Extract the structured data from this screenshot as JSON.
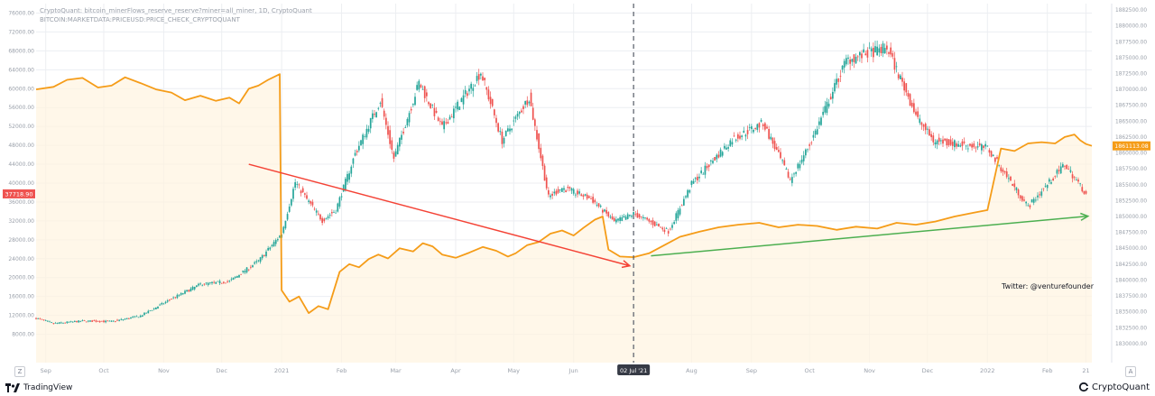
{
  "legend": {
    "line1": "CryptoQuant: bitcoin_minerFlows_reserve_reserve?miner=all_miner, 1D, CryptoQuant",
    "line2": "BITCOIN:MARKETDATA:PRICEUSD:PRICE_CHECK_CRYPTOQUANT"
  },
  "annotation": "Twitter: @venturefounder",
  "crosshair": {
    "label": "02 Jul '21"
  },
  "branding": {
    "tradingview": "TradingView",
    "cryptoquant": "CryptoQuant"
  },
  "corner_buttons": {
    "left": "Z",
    "right": "A"
  },
  "colors": {
    "price_line": "#f59c18",
    "candle_up": "#26a69a",
    "candle_down": "#ef5350",
    "red_trend": "#f44336",
    "green_trend": "#4caf50",
    "fill": "#fff3e0",
    "grid": "#eceef2",
    "axis_text": "#9aa0aa",
    "left_badge": "#ef5350",
    "right_badge": "#f59c18"
  },
  "chart_data": {
    "type": "line",
    "title": "",
    "xlabel": "",
    "ylabel": "",
    "grid": true,
    "x_tick_labels": [
      "Sep",
      "Oct",
      "Nov",
      "Dec",
      "2021",
      "Feb",
      "Mar",
      "Apr",
      "May",
      "Jun",
      "Aug",
      "Sep",
      "Oct",
      "Nov",
      "Dec",
      "2022",
      "Feb",
      "21"
    ],
    "x_tick_dates": [
      "2020-09-01",
      "2020-10-01",
      "2020-11-01",
      "2020-12-01",
      "2021-01-01",
      "2021-02-01",
      "2021-03-01",
      "2021-04-01",
      "2021-05-01",
      "2021-06-01",
      "2021-08-01",
      "2021-09-01",
      "2021-10-01",
      "2021-11-01",
      "2021-12-01",
      "2022-01-01",
      "2022-02-01",
      "2022-02-21"
    ],
    "x_range": [
      "2020-08-27",
      "2022-02-24"
    ],
    "left_axis": {
      "ticks": [
        8000,
        12000,
        16000,
        20000,
        24000,
        28000,
        32000,
        36000,
        40000,
        44000,
        48000,
        52000,
        56000,
        60000,
        64000,
        68000,
        72000,
        76000
      ],
      "range": [
        2000,
        78000
      ],
      "current_label": "37718.90"
    },
    "right_axis": {
      "ticks": [
        1830000,
        1832500,
        1835000,
        1837500,
        1840000,
        1842500,
        1845000,
        1847500,
        1850000,
        1852500,
        1855000,
        1857500,
        1860000,
        1862500,
        1865000,
        1867500,
        1870000,
        1872500,
        1875000,
        1877500,
        1880000,
        1882500
      ],
      "range": [
        1827000,
        1883500
      ],
      "current_label": "1861113.08"
    },
    "series": [
      {
        "kind": "line",
        "axis": "right",
        "points": [
          [
            "2020-08-27",
            1870000
          ],
          [
            "2020-09-05",
            1870400
          ],
          [
            "2020-09-12",
            1871500
          ],
          [
            "2020-09-20",
            1871800
          ],
          [
            "2020-09-28",
            1870300
          ],
          [
            "2020-10-05",
            1870600
          ],
          [
            "2020-10-12",
            1871900
          ],
          [
            "2020-10-20",
            1871000
          ],
          [
            "2020-10-28",
            1870000
          ],
          [
            "2020-11-05",
            1869500
          ],
          [
            "2020-11-12",
            1868300
          ],
          [
            "2020-11-20",
            1869000
          ],
          [
            "2020-11-28",
            1868200
          ],
          [
            "2020-12-05",
            1868700
          ],
          [
            "2020-12-10",
            1867800
          ],
          [
            "2020-12-15",
            1870100
          ],
          [
            "2020-12-20",
            1870600
          ],
          [
            "2020-12-25",
            1871500
          ],
          [
            "2020-12-31",
            1872400
          ],
          [
            "2021-01-01",
            1838400
          ],
          [
            "2021-01-05",
            1836600
          ],
          [
            "2021-01-10",
            1837400
          ],
          [
            "2021-01-15",
            1834800
          ],
          [
            "2021-01-20",
            1835900
          ],
          [
            "2021-01-25",
            1835400
          ],
          [
            "2021-01-31",
            1841300
          ],
          [
            "2021-02-05",
            1842500
          ],
          [
            "2021-02-10",
            1842000
          ],
          [
            "2021-02-15",
            1843300
          ],
          [
            "2021-02-20",
            1844000
          ],
          [
            "2021-02-25",
            1843400
          ],
          [
            "2021-03-03",
            1845000
          ],
          [
            "2021-03-10",
            1844500
          ],
          [
            "2021-03-15",
            1845800
          ],
          [
            "2021-03-20",
            1845300
          ],
          [
            "2021-03-25",
            1844000
          ],
          [
            "2021-04-01",
            1843500
          ],
          [
            "2021-04-08",
            1844300
          ],
          [
            "2021-04-15",
            1845200
          ],
          [
            "2021-04-22",
            1844600
          ],
          [
            "2021-04-28",
            1843700
          ],
          [
            "2021-05-02",
            1844200
          ],
          [
            "2021-05-08",
            1845500
          ],
          [
            "2021-05-14",
            1846000
          ],
          [
            "2021-05-20",
            1847300
          ],
          [
            "2021-05-26",
            1847800
          ],
          [
            "2021-06-01",
            1847000
          ],
          [
            "2021-06-06",
            1848200
          ],
          [
            "2021-06-12",
            1849500
          ],
          [
            "2021-06-16",
            1850000
          ],
          [
            "2021-06-19",
            1844800
          ],
          [
            "2021-06-25",
            1843700
          ],
          [
            "2021-07-02",
            1843600
          ],
          [
            "2021-07-10",
            1844200
          ],
          [
            "2021-07-18",
            1845500
          ],
          [
            "2021-07-26",
            1846800
          ],
          [
            "2021-08-05",
            1847600
          ],
          [
            "2021-08-15",
            1848300
          ],
          [
            "2021-08-25",
            1848700
          ],
          [
            "2021-09-05",
            1849000
          ],
          [
            "2021-09-15",
            1848300
          ],
          [
            "2021-09-25",
            1848700
          ],
          [
            "2021-10-05",
            1848500
          ],
          [
            "2021-10-15",
            1847900
          ],
          [
            "2021-10-25",
            1848400
          ],
          [
            "2021-11-05",
            1848100
          ],
          [
            "2021-11-15",
            1849000
          ],
          [
            "2021-11-25",
            1848700
          ],
          [
            "2021-12-05",
            1849200
          ],
          [
            "2021-12-15",
            1850000
          ],
          [
            "2021-12-25",
            1850600
          ],
          [
            "2022-01-01",
            1851000
          ],
          [
            "2022-01-08",
            1860700
          ],
          [
            "2022-01-15",
            1860300
          ],
          [
            "2022-01-22",
            1861500
          ],
          [
            "2022-01-29",
            1861700
          ],
          [
            "2022-02-05",
            1861500
          ],
          [
            "2022-02-10",
            1862500
          ],
          [
            "2022-02-15",
            1862900
          ],
          [
            "2022-02-18",
            1862000
          ],
          [
            "2022-02-21",
            1861400
          ],
          [
            "2022-02-24",
            1861113
          ]
        ]
      },
      {
        "kind": "candlestick",
        "axis": "left",
        "points": [
          [
            "2020-08-27",
            11400
          ],
          [
            "2020-09-05",
            10300
          ],
          [
            "2020-09-20",
            10800
          ],
          [
            "2020-10-05",
            10700
          ],
          [
            "2020-10-20",
            11900
          ],
          [
            "2020-11-05",
            15500
          ],
          [
            "2020-11-20",
            18600
          ],
          [
            "2020-12-05",
            19200
          ],
          [
            "2020-12-20",
            23500
          ],
          [
            "2021-01-01",
            29300
          ],
          [
            "2021-01-08",
            40200
          ],
          [
            "2021-01-15",
            36000
          ],
          [
            "2021-01-22",
            32100
          ],
          [
            "2021-01-29",
            34300
          ],
          [
            "2021-02-08",
            46200
          ],
          [
            "2021-02-21",
            57500
          ],
          [
            "2021-02-28",
            45200
          ],
          [
            "2021-03-13",
            61200
          ],
          [
            "2021-03-25",
            51700
          ],
          [
            "2021-04-14",
            63500
          ],
          [
            "2021-04-25",
            49000
          ],
          [
            "2021-05-09",
            58200
          ],
          [
            "2021-05-19",
            37000
          ],
          [
            "2021-05-26",
            39000
          ],
          [
            "2021-06-10",
            36700
          ],
          [
            "2021-06-22",
            31800
          ],
          [
            "2021-07-02",
            33500
          ],
          [
            "2021-07-20",
            29800
          ],
          [
            "2021-08-01",
            39800
          ],
          [
            "2021-08-22",
            49300
          ],
          [
            "2021-09-07",
            52700
          ],
          [
            "2021-09-21",
            40700
          ],
          [
            "2021-10-01",
            48100
          ],
          [
            "2021-10-20",
            66000
          ],
          [
            "2021-11-10",
            68700
          ],
          [
            "2021-11-26",
            53600
          ],
          [
            "2021-12-04",
            49000
          ],
          [
            "2022-01-01",
            47400
          ],
          [
            "2022-01-22",
            35000
          ],
          [
            "2022-02-10",
            44000
          ],
          [
            "2022-02-21",
            37718
          ]
        ]
      }
    ],
    "trend_lines": [
      {
        "color": "red",
        "from": [
          "2020-12-15",
          44000
        ],
        "to": [
          "2021-06-30",
          22500
        ]
      },
      {
        "color": "green",
        "from": [
          "2021-07-11",
          24600
        ],
        "to": [
          "2022-02-22",
          33000
        ]
      }
    ]
  }
}
